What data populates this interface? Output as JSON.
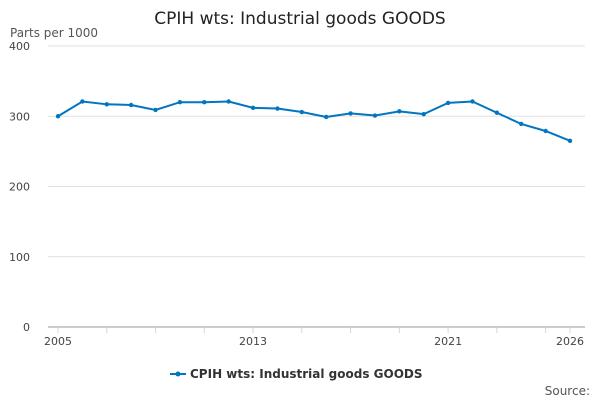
{
  "chart_data": {
    "type": "line",
    "title": "CPIH wts: Industrial goods GOODS",
    "ylabel": "Parts per 1000",
    "xlabel": "",
    "x": [
      2005,
      2006,
      2007,
      2008,
      2009,
      2010,
      2011,
      2012,
      2013,
      2014,
      2015,
      2016,
      2017,
      2018,
      2019,
      2020,
      2021,
      2022,
      2023,
      2024,
      2025,
      2026
    ],
    "series": [
      {
        "name": "CPIH wts: Industrial goods GOODS",
        "color": "#0075c0",
        "values": [
          300,
          321,
          317,
          316,
          309,
          320,
          320,
          321,
          312,
          311,
          306,
          299,
          304,
          301,
          307,
          303,
          319,
          321,
          305,
          289,
          279,
          265
        ]
      }
    ],
    "xticks": [
      "2005",
      "2013",
      "2021",
      "2026"
    ],
    "yticks": [
      "0",
      "100",
      "200",
      "300",
      "400"
    ],
    "ylim": [
      0,
      400
    ],
    "xlim": [
      2005,
      2026
    ],
    "grid": true,
    "legend_position": "bottom",
    "source_label": "Source:"
  }
}
